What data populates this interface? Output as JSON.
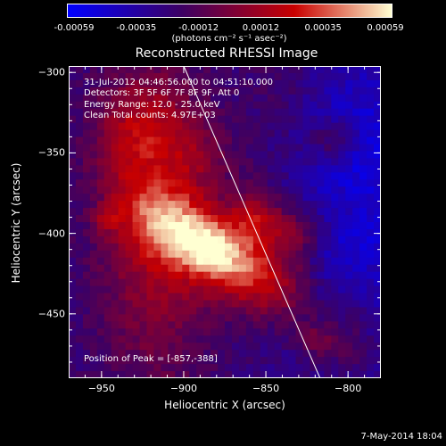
{
  "colorbar": {
    "ticks": [
      "-0.00059",
      "-0.00035",
      "-0.00012",
      "0.00012",
      "0.00035",
      "0.00059"
    ],
    "units": "(photons cm⁻² s⁻¹ asec⁻²)"
  },
  "annotations": {
    "time": "31-Jul-2012 04:46:56.000 to 04:51:10.000",
    "detectors": "Detectors: 3F 5F 6F 7F 8F 9F, Att 0",
    "energy": "Energy Range: 12.0 - 25.0 keV",
    "clean": "Clean    Total counts: 4.97E+03",
    "peak": "Position of Peak = [-857,-388]"
  },
  "footer": "7-May-2014 18:04",
  "chart_data": {
    "type": "heatmap",
    "title": "Reconstructed RHESSI Image",
    "xlabel": "Heliocentric X (arcsec)",
    "ylabel": "Heliocentric Y (arcsec)",
    "xlim": [
      -970,
      -780
    ],
    "ylim": [
      -490,
      -296
    ],
    "xticks": [
      -950,
      -900,
      -850,
      -800
    ],
    "yticks": [
      -300,
      -350,
      -400,
      -450
    ],
    "colorscale_range": [
      -0.00059,
      0.00059
    ],
    "peak_position": [
      -857,
      -388
    ],
    "limb_line": [
      [
        -900,
        -296
      ],
      [
        -817,
        -490
      ]
    ],
    "colors": {
      "low": "#0000ff",
      "mid_negative": "#3c0064",
      "mid": "#c80000",
      "high": "#ffffd2"
    }
  }
}
